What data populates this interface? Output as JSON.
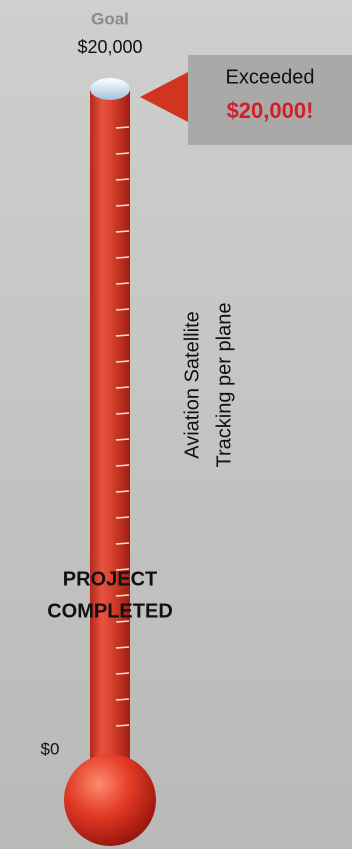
{
  "goal": {
    "label": "Goal",
    "amount": "$20,000"
  },
  "callout": {
    "status": "Exceeded",
    "amount": "$20,000!"
  },
  "base_label": "$0",
  "project": {
    "name_lines": [
      "Aviation Satellite",
      "Tracking per plane"
    ],
    "status_lines": [
      "PROJECT",
      "COMPLETED"
    ]
  }
}
